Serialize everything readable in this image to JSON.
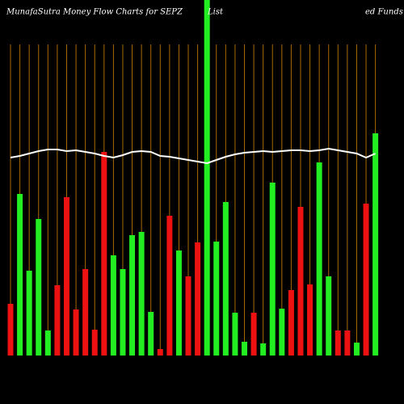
{
  "chart_data": {
    "type": "bar",
    "title": [
      "MunafaSutra  Money Flow  Charts for SEPZ",
      "List",
      "ed Funds"
    ],
    "categories": [
      null,
      null,
      null,
      null,
      null,
      null,
      null,
      null,
      null,
      null,
      null,
      null,
      null,
      null,
      null,
      null,
      null,
      null,
      null,
      null,
      null,
      null,
      null,
      null,
      null,
      null,
      null,
      null,
      null,
      null,
      null,
      null,
      null,
      null,
      null,
      null,
      null,
      null,
      null,
      null
    ],
    "ylim": [
      0,
      440
    ],
    "grid": true,
    "grid_color": "#a86a00",
    "series": [
      {
        "type": "bar",
        "values": [
          64,
          200,
          105,
          169,
          31,
          87,
          196,
          57,
          107,
          32,
          252,
          124,
          107,
          149,
          153,
          54,
          8,
          173,
          130,
          98,
          140,
          440,
          141,
          190,
          53,
          17,
          53,
          15,
          214,
          58,
          81,
          184,
          88,
          239,
          98,
          31,
          31,
          16,
          188,
          275
        ],
        "colors": [
          "#ee1111",
          "#22ee22",
          "#22ee22",
          "#22ee22",
          "#22ee22",
          "#ee1111",
          "#ee1111",
          "#ee1111",
          "#ee1111",
          "#ee1111",
          "#ee1111",
          "#22ee22",
          "#22ee22",
          "#22ee22",
          "#22ee22",
          "#22ee22",
          "#ee1111",
          "#ee1111",
          "#22ee22",
          "#ee1111",
          "#ee1111",
          "#22ee22",
          "#22ee22",
          "#22ee22",
          "#22ee22",
          "#22ee22",
          "#ee1111",
          "#22ee22",
          "#22ee22",
          "#22ee22",
          "#ee1111",
          "#ee1111",
          "#ee1111",
          "#22ee22",
          "#22ee22",
          "#ee1111",
          "#ee1111",
          "#22ee22",
          "#ee1111",
          "#22ee22"
        ]
      },
      {
        "type": "line",
        "color": "#ffffff",
        "values": [
          245,
          247,
          250,
          253,
          255,
          255,
          253,
          254,
          252,
          250,
          247,
          245,
          248,
          252,
          253,
          252,
          247,
          246,
          244,
          242,
          240,
          238,
          242,
          246,
          249,
          251,
          252,
          253,
          252,
          253,
          254,
          254,
          253,
          254,
          256,
          254,
          252,
          250,
          245,
          250
        ]
      }
    ]
  }
}
